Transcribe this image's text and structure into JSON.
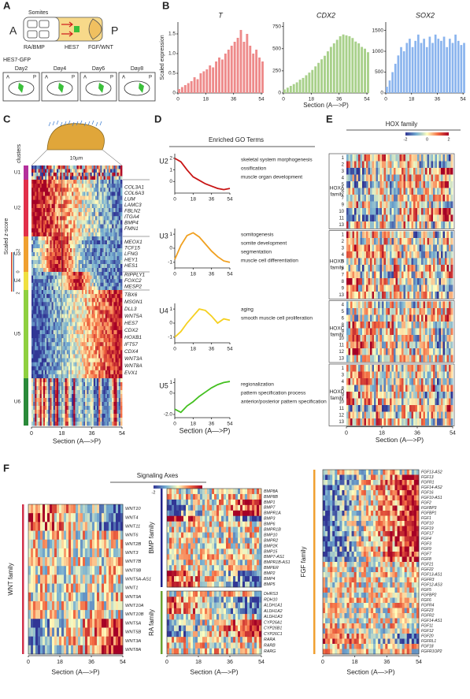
{
  "panels": {
    "labels": [
      "A",
      "B",
      "C",
      "D",
      "E",
      "F"
    ],
    "A": {
      "somites": "Somites",
      "signals": [
        "RA/BMP",
        "HES7",
        "FGF/WNT"
      ],
      "anterior": "A",
      "posterior": "P",
      "reporter": "HES7-GFP",
      "days": [
        "Day2",
        "Day4",
        "Day6",
        "Day8"
      ]
    },
    "C": {
      "scale_bar": "10µm",
      "clusters_title": "clusters",
      "zscore_title": "Scaled z-score",
      "colorbar": [
        "-2",
        "0",
        "2"
      ],
      "xticks": [
        0,
        18,
        36,
        54
      ],
      "xlabel": "Section (A—>P)",
      "clusters": [
        {
          "name": "U1",
          "color": "#b4309c",
          "genes": []
        },
        {
          "name": "U2",
          "color": "#e2304a",
          "genes": [
            "COL3A1",
            "COL6A3",
            "LUM",
            "LAMC3",
            "FBLN2",
            "ITGA4",
            "BMP4",
            "FMN1"
          ]
        },
        {
          "name": "U3",
          "color": "#f0a030",
          "genes": [
            "MEOX1",
            "TCF15",
            "LFNG",
            "HEY1",
            "HES1"
          ]
        },
        {
          "name": "U4",
          "color": "#efe040",
          "genes": [
            "RIPPLY1",
            "FOXC2",
            "MESP2"
          ]
        },
        {
          "name": "U5",
          "color": "#8fd040",
          "genes": [
            "TBX6",
            "MSGN1",
            "DLL3",
            "WNT5A",
            "HES7",
            "CDX2",
            "HOXB1",
            "IFT57",
            "CDX4",
            "WNT3A",
            "WNT8A",
            "EVX1"
          ]
        },
        {
          "name": "U6",
          "color": "#2a8a3a",
          "genes": []
        }
      ]
    },
    "D": {
      "heading": "Enriched GO Terms"
    },
    "E": {
      "title": "HOX family",
      "colorbar": [
        "-2",
        "0",
        "2"
      ],
      "xticks": [
        0,
        18,
        36,
        54
      ],
      "xlabel": "Section (A—>P)",
      "families": [
        {
          "label_lines": [
            "HOXA",
            "family"
          ],
          "rows": [
            "1",
            "2",
            "3",
            "4",
            "5",
            "6",
            "7",
            "9",
            "10",
            "11",
            "13"
          ]
        },
        {
          "label_lines": [
            "HOXB",
            "family"
          ],
          "rows": [
            "1",
            "2",
            "3",
            "4",
            "5",
            "6",
            "7",
            "8",
            "9",
            "13"
          ]
        },
        {
          "label_lines": [
            "HOXC",
            "family"
          ],
          "rows": [
            "4",
            "5",
            "6",
            "8",
            "9",
            "10",
            "11",
            "12",
            "13"
          ]
        },
        {
          "label_lines": [
            "HOXD",
            "family"
          ],
          "rows": [
            "1",
            "3",
            "4",
            "8",
            "9",
            "10",
            "11",
            "12",
            "13"
          ]
        }
      ]
    },
    "F": {
      "title": "Signaling Axes",
      "colorbar": [
        "-2",
        "0",
        "2"
      ],
      "xticks": [
        0,
        18,
        36,
        54
      ],
      "xlabel": "Section (A—>P)",
      "families": [
        {
          "name": "WNT family",
          "bar_color": "#d0304a",
          "genes": [
            {
              "name": "WNT10",
              "color": "#2a3aa8"
            },
            {
              "name": "WNT4",
              "color": "#2a3aa8"
            },
            {
              "name": "WNT11",
              "color": "#2a3aa8"
            },
            {
              "name": "WNT6",
              "color": "#222"
            },
            {
              "name": "WNT2B",
              "color": "#222"
            },
            {
              "name": "WNT3",
              "color": "#222"
            },
            {
              "name": "WNT7B",
              "color": "#222"
            },
            {
              "name": "WNT9B",
              "color": "#222"
            },
            {
              "name": "WNT5A-AS1",
              "color": "#222"
            },
            {
              "name": "WNT1",
              "color": "#222"
            },
            {
              "name": "WNT9A",
              "color": "#222"
            },
            {
              "name": "WNT10A",
              "color": "#222"
            },
            {
              "name": "WNT10B",
              "color": "#222"
            },
            {
              "name": "WNT5A",
              "color": "#d02020"
            },
            {
              "name": "WNT5B",
              "color": "#d02020"
            },
            {
              "name": "WNT3A",
              "color": "#d02020"
            },
            {
              "name": "WNT8A",
              "color": "#d02020"
            }
          ]
        },
        {
          "name": "BMP family",
          "bar_color": "#23238a",
          "genes": [
            {
              "name": "BMP8A",
              "color": "#222"
            },
            {
              "name": "BMP8B",
              "color": "#222"
            },
            {
              "name": "BMP1",
              "color": "#d02020"
            },
            {
              "name": "BMP7",
              "color": "#d02020"
            },
            {
              "name": "BMPR1A",
              "color": "#d02020"
            },
            {
              "name": "BMP3",
              "color": "#2a3aa8"
            },
            {
              "name": "BMP6",
              "color": "#222"
            },
            {
              "name": "BMPR1B",
              "color": "#222"
            },
            {
              "name": "BMP10",
              "color": "#222"
            },
            {
              "name": "BMPR2",
              "color": "#222"
            },
            {
              "name": "BMP2K",
              "color": "#222"
            },
            {
              "name": "BMP15",
              "color": "#222"
            },
            {
              "name": "BMP7-AS1",
              "color": "#222"
            },
            {
              "name": "BMPR1B-AS1",
              "color": "#222"
            },
            {
              "name": "BMPER",
              "color": "#222"
            },
            {
              "name": "BMP2",
              "color": "#2a3aa8"
            },
            {
              "name": "BMP4",
              "color": "#2a3aa8"
            },
            {
              "name": "BMP5",
              "color": "#2a3aa8"
            }
          ]
        },
        {
          "name": "RA family",
          "bar_color": "#6aa030",
          "genes": [
            {
              "name": "DHRS3",
              "color": "#222"
            },
            {
              "name": "RDH10",
              "color": "#2a3aa8"
            },
            {
              "name": "ALDH1A1",
              "color": "#2a3aa8"
            },
            {
              "name": "ALDH1A2",
              "color": "#2a3aa8"
            },
            {
              "name": "ALDH1A3",
              "color": "#222"
            },
            {
              "name": "CYP26A1",
              "color": "#d02020"
            },
            {
              "name": "CYP26B1",
              "color": "#d02020"
            },
            {
              "name": "CYP26C1",
              "color": "#d02020"
            },
            {
              "name": "RARA",
              "color": "#222"
            },
            {
              "name": "RARB",
              "color": "#222"
            },
            {
              "name": "RARG",
              "color": "#222"
            }
          ]
        },
        {
          "name": "FGF family",
          "bar_color": "#f0a030",
          "genes": [
            {
              "name": "FGF13-AS2",
              "color": "#222"
            },
            {
              "name": "FGF13",
              "color": "#d02020"
            },
            {
              "name": "FGFR1",
              "color": "#d02020"
            },
            {
              "name": "FGF14-AS2",
              "color": "#d02020"
            },
            {
              "name": "FGF16",
              "color": "#d02020"
            },
            {
              "name": "FGF10-AS1",
              "color": "#d02020"
            },
            {
              "name": "FGF2",
              "color": "#d02020"
            },
            {
              "name": "FGFBP3",
              "color": "#d02020"
            },
            {
              "name": "FGFBP1",
              "color": "#d02020"
            },
            {
              "name": "FGF1",
              "color": "#d02020"
            },
            {
              "name": "FGF10",
              "color": "#d02020"
            },
            {
              "name": "FGF19",
              "color": "#d02020"
            },
            {
              "name": "FGF17",
              "color": "#d02020"
            },
            {
              "name": "FGF4",
              "color": "#d02020"
            },
            {
              "name": "FGF3",
              "color": "#d02020"
            },
            {
              "name": "FGF9",
              "color": "#d02020"
            },
            {
              "name": "FGF7",
              "color": "#d02020"
            },
            {
              "name": "FGF8",
              "color": "#d02020"
            },
            {
              "name": "FGF21",
              "color": "#222"
            },
            {
              "name": "FGF22",
              "color": "#222"
            },
            {
              "name": "FGF13-AS1",
              "color": "#222"
            },
            {
              "name": "FGFR3",
              "color": "#222"
            },
            {
              "name": "FGF12-AS3",
              "color": "#222"
            },
            {
              "name": "FGF5",
              "color": "#222"
            },
            {
              "name": "FGFBP2",
              "color": "#222"
            },
            {
              "name": "FGF6",
              "color": "#222"
            },
            {
              "name": "FGFR4",
              "color": "#222"
            },
            {
              "name": "FGF23",
              "color": "#222"
            },
            {
              "name": "FGFR2",
              "color": "#222"
            },
            {
              "name": "FGF14-AS1",
              "color": "#222"
            },
            {
              "name": "FGF11",
              "color": "#222"
            },
            {
              "name": "FGF12",
              "color": "#222"
            },
            {
              "name": "FGF20",
              "color": "#2a3aa8"
            },
            {
              "name": "FGFRL1",
              "color": "#2a3aa8"
            },
            {
              "name": "FGF18",
              "color": "#222"
            },
            {
              "name": "FGFR1OP2",
              "color": "#222"
            }
          ]
        }
      ]
    }
  },
  "chart_data": [
    {
      "type": "bar",
      "title": "T",
      "ylabel": "Scaled expression",
      "color": "#ee8a8a",
      "x": [
        0,
        2,
        4,
        6,
        8,
        10,
        12,
        14,
        16,
        18,
        20,
        22,
        24,
        26,
        28,
        30,
        32,
        34,
        36,
        38,
        40,
        42,
        44,
        46,
        48,
        50,
        52,
        54
      ],
      "values": [
        0.1,
        0.15,
        0.2,
        0.25,
        0.3,
        0.4,
        0.35,
        0.5,
        0.55,
        0.6,
        0.7,
        0.65,
        0.8,
        0.9,
        0.85,
        1.0,
        1.1,
        1.2,
        1.3,
        1.4,
        1.6,
        1.3,
        1.5,
        1.2,
        1.0,
        1.1,
        0.9,
        0.8
      ],
      "xlim": [
        0,
        55
      ],
      "xticks": [
        0,
        18,
        36,
        54
      ],
      "ylim": [
        0,
        1.8
      ],
      "yticks": [
        0,
        0.5,
        {
          "value": 1,
          "label": "1.0"
        },
        1.5
      ]
    },
    {
      "type": "bar",
      "title": "CDX2",
      "xlabel": "Section (A—>P)",
      "color": "#a8d08a",
      "x": [
        0,
        2,
        4,
        6,
        8,
        10,
        12,
        14,
        16,
        18,
        20,
        22,
        24,
        26,
        28,
        30,
        32,
        34,
        36,
        38,
        40,
        42,
        44,
        46,
        48,
        50,
        52,
        54
      ],
      "values": [
        40,
        60,
        80,
        100,
        120,
        150,
        170,
        200,
        230,
        260,
        300,
        340,
        380,
        420,
        470,
        520,
        560,
        600,
        640,
        660,
        650,
        640,
        620,
        580,
        560,
        520,
        500,
        460
      ],
      "xlim": [
        0,
        55
      ],
      "xticks": [
        0,
        18,
        36,
        54
      ],
      "ylim": [
        0,
        800
      ],
      "yticks": [
        0,
        250,
        500,
        750
      ]
    },
    {
      "type": "bar",
      "title": "SOX2",
      "color": "#8ab4ee",
      "x": [
        0,
        2,
        4,
        6,
        8,
        10,
        12,
        14,
        16,
        18,
        20,
        22,
        24,
        26,
        28,
        30,
        32,
        34,
        36,
        38,
        40,
        42,
        44,
        46,
        48,
        50,
        52,
        54
      ],
      "values": [
        150,
        300,
        500,
        700,
        900,
        1100,
        1000,
        1200,
        1300,
        1100,
        1250,
        1400,
        1200,
        1300,
        1100,
        1350,
        1200,
        1400,
        1300,
        1250,
        1350,
        1100,
        1300,
        1200,
        1400,
        1250,
        1150,
        1200
      ],
      "xlim": [
        0,
        55
      ],
      "xticks": [
        0,
        18,
        36,
        54
      ],
      "ylim": [
        0,
        1700
      ],
      "yticks": [
        0,
        500,
        1000,
        1500
      ]
    },
    {
      "type": "line",
      "title": "U2",
      "color": "#c81414",
      "annotations": [
        "skeletal system morphogenesis",
        "ossification",
        "muscle organ development"
      ],
      "x": [
        0,
        6,
        12,
        18,
        24,
        30,
        36,
        42,
        48,
        54
      ],
      "values": [
        2.0,
        1.7,
        1.0,
        0.4,
        0.1,
        -0.2,
        -0.4,
        -0.6,
        -0.7,
        -0.6
      ],
      "xlim": [
        0,
        54
      ],
      "xticks": [
        0,
        18,
        36,
        54
      ],
      "ylim": [
        -1,
        2.4
      ],
      "yticks": [
        0,
        1,
        2
      ]
    },
    {
      "type": "line",
      "title": "U3",
      "color": "#f0a020",
      "annotations": [
        "somitogenesis",
        "somite development",
        "segmentation",
        "muscle cell differentiation"
      ],
      "x": [
        0,
        6,
        12,
        18,
        24,
        30,
        36,
        42,
        48,
        54
      ],
      "values": [
        -0.8,
        0.2,
        0.9,
        1.1,
        0.8,
        0.3,
        -0.2,
        -0.6,
        -0.9,
        -1.0
      ],
      "xlim": [
        0,
        54
      ],
      "xticks": [
        0,
        18,
        36,
        54
      ],
      "ylim": [
        -1.4,
        1.4
      ],
      "yticks": [
        -1,
        0,
        1
      ]
    },
    {
      "type": "line",
      "title": "U4",
      "color": "#f5d020",
      "annotations": [
        "aging",
        "smooth muscle cell proliferation"
      ],
      "x": [
        0,
        6,
        12,
        18,
        24,
        30,
        36,
        42,
        48,
        54
      ],
      "values": [
        -1.0,
        -0.6,
        0.0,
        0.5,
        1.0,
        0.9,
        0.5,
        0.0,
        0.3,
        0.2
      ],
      "xlim": [
        0,
        54
      ],
      "xticks": [
        0,
        18,
        36,
        54
      ],
      "ylim": [
        -1.4,
        1.4
      ],
      "yticks": [
        -1,
        0,
        1
      ]
    },
    {
      "type": "line",
      "title": "U5",
      "color": "#44c020",
      "xlabel": "Section (A—>P)",
      "annotations": [
        "regionalization",
        "pattern specification process",
        "anterior/posterior pattern specification"
      ],
      "x": [
        0,
        6,
        12,
        18,
        24,
        30,
        36,
        42,
        48,
        54
      ],
      "values": [
        -1.5,
        -1.8,
        -1.2,
        -0.8,
        -0.3,
        0.1,
        0.5,
        0.8,
        1.0,
        1.1
      ],
      "xlim": [
        0,
        54
      ],
      "xticks": [
        0,
        18,
        36,
        54
      ],
      "ylim": [
        -2.3,
        1.4
      ],
      "yticks": [
        {
          "value": -2,
          "label": "-2.0"
        },
        0,
        1
      ]
    }
  ]
}
